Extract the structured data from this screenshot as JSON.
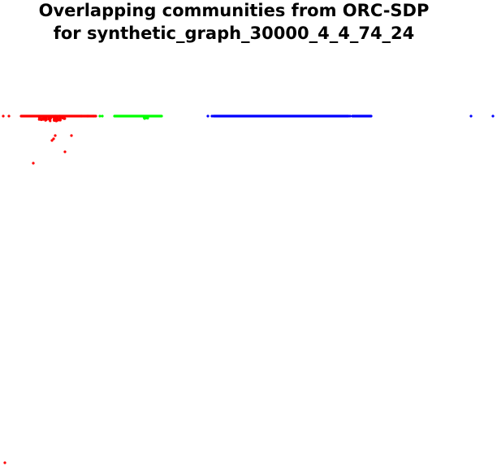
{
  "chart_data": {
    "type": "scatter",
    "title_lines": [
      "Overlapping communities from ORC-SDP",
      "for synthetic_graph_30000_4_4_74_24"
    ],
    "axes_visible": false,
    "grid": false,
    "legend": "none",
    "series": [
      {
        "color": "#ff0000",
        "segments": [
          [
            26,
            118
          ]
        ],
        "clusters": [
          {
            "x_range": [
              48,
              80
            ],
            "y_range": [
              -6,
              0
            ],
            "count": 60
          }
        ],
        "points": [
          [
            4,
            0
          ],
          [
            11,
            0
          ],
          [
            100,
            0
          ],
          [
            108,
            0
          ],
          [
            115,
            0
          ],
          [
            68,
            -24
          ],
          [
            66,
            -28
          ],
          [
            64,
            -30
          ],
          [
            88,
            -24
          ],
          [
            80,
            -44
          ],
          [
            41,
            -58
          ],
          [
            6,
            -427
          ]
        ]
      },
      {
        "color": "#00ff00",
        "segments": [
          [
            141,
            199
          ]
        ],
        "clusters": [
          {
            "x_range": [
              175,
              185
            ],
            "y_range": [
              -3,
              0
            ],
            "count": 12
          }
        ],
        "points": [
          [
            123,
            0
          ],
          [
            126,
            0
          ]
        ]
      },
      {
        "color": "#0000ff",
        "segments": [
          [
            263,
            429
          ],
          [
            434,
            457
          ]
        ],
        "clusters": [],
        "points": [
          [
            256,
            0
          ],
          [
            261,
            0
          ],
          [
            431,
            0
          ],
          [
            580,
            0
          ],
          [
            607,
            0
          ]
        ]
      }
    ]
  }
}
